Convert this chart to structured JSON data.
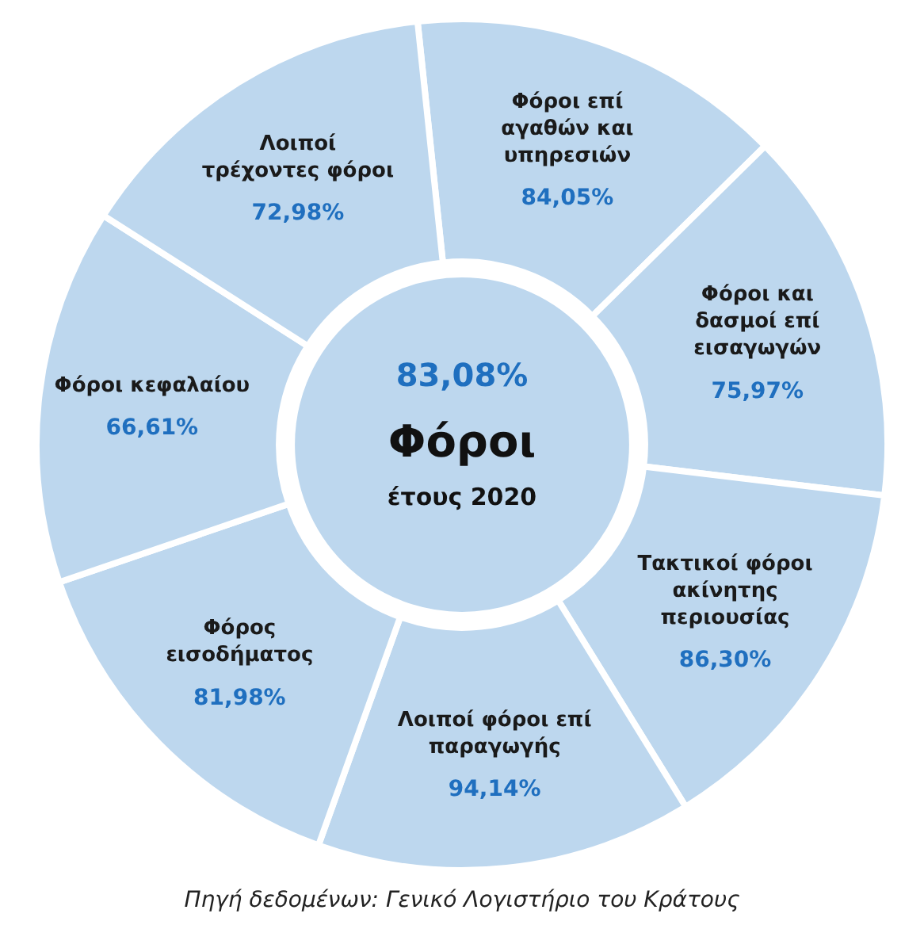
{
  "chart_data": {
    "type": "other",
    "title": "Φόροι",
    "subtitle": "έτους 2020",
    "categories": [
      "Φόροι επί αγαθών και υπηρεσιών",
      "Φόροι και δασμοί επί εισαγωγών",
      "Τακτικοί φόροι ακίνητης περιουσίας",
      "Λοιποί φόροι επί παραγωγής",
      "Φόρος εισοδήματος",
      "Φόροι κεφαλαίου",
      "Λοιποί τρέχοντες φόροι"
    ],
    "values": [
      84.05,
      75.97,
      86.3,
      94.14,
      81.98,
      66.61,
      72.98
    ],
    "value_labels": [
      "84,05%",
      "75,97%",
      "86,30%",
      "94,14%",
      "81,98%",
      "66,61%",
      "72,98%"
    ],
    "color": "#bdd7ee",
    "annotations": [
      "83,08%",
      "Πηγή δεδομένων: Γενικό Λογιστήριο του Κράτους"
    ]
  }
}
